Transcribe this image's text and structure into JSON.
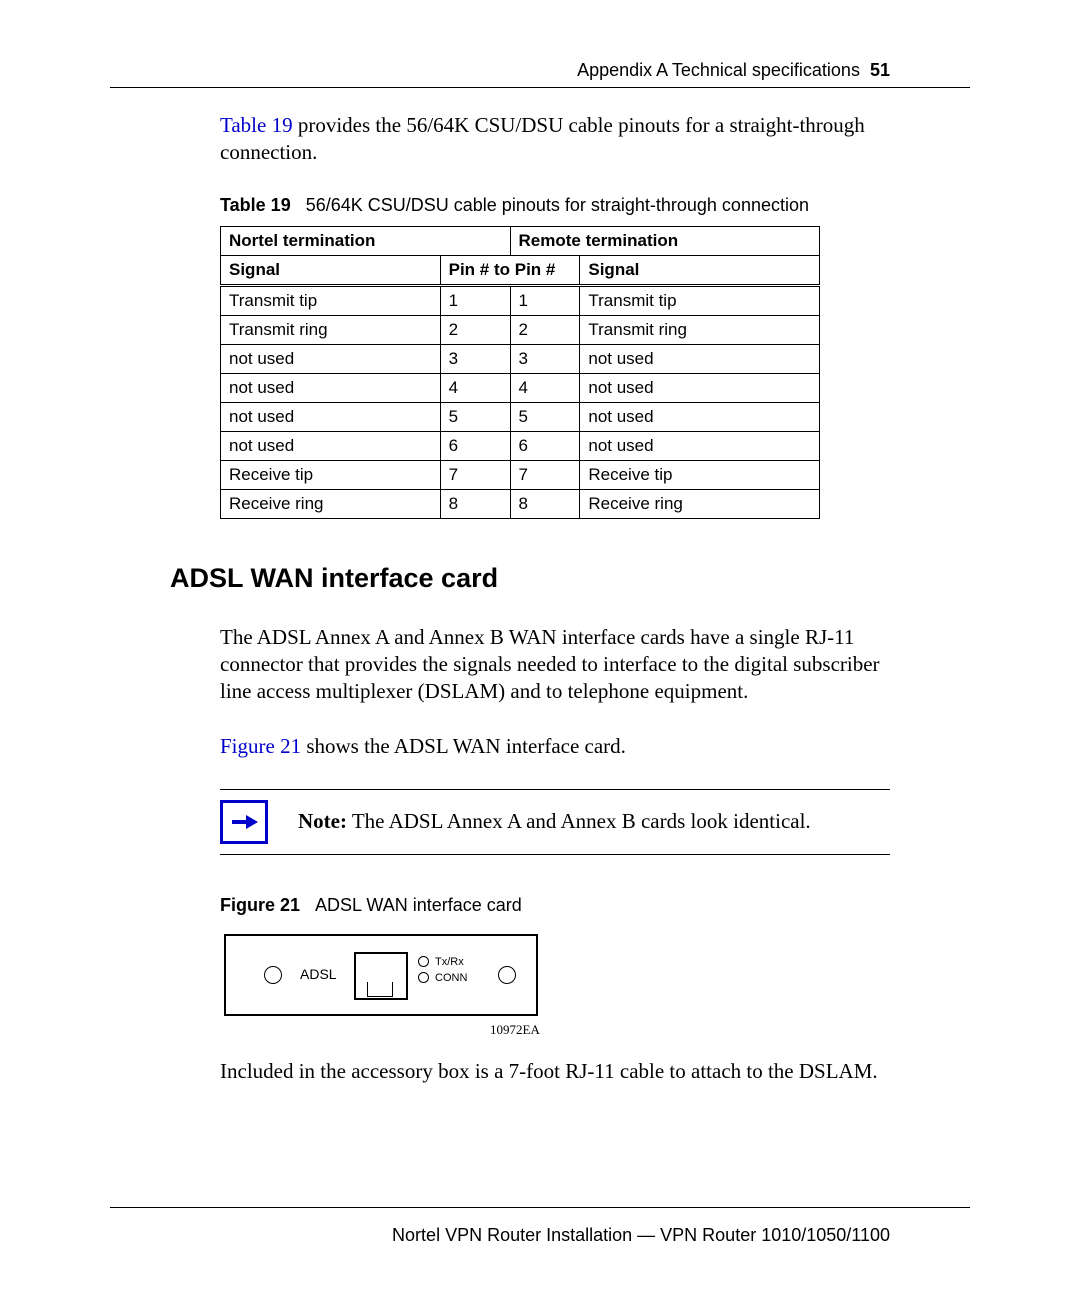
{
  "header": {
    "text": "Appendix A  Technical specifications",
    "page_number": "51"
  },
  "intro": {
    "table_ref": "Table 19",
    "rest": " provides the 56/64K CSU/DSU cable pinouts for a straight-through connection."
  },
  "table19": {
    "caption_label": "Table 19",
    "caption_text": "56/64K CSU/DSU cable pinouts for straight-through connection",
    "group_headers": [
      "Nortel termination",
      "Remote termination"
    ],
    "sub_headers": [
      "Signal",
      "Pin # to Pin #",
      "Signal"
    ],
    "rows": [
      [
        "Transmit tip",
        "1",
        "1",
        "Transmit tip"
      ],
      [
        "Transmit ring",
        "2",
        "2",
        "Transmit ring"
      ],
      [
        "not used",
        "3",
        "3",
        "not used"
      ],
      [
        "not used",
        "4",
        "4",
        "not used"
      ],
      [
        "not used",
        "5",
        "5",
        "not used"
      ],
      [
        "not used",
        "6",
        "6",
        "not used"
      ],
      [
        "Receive tip",
        "7",
        "7",
        "Receive tip"
      ],
      [
        "Receive ring",
        "8",
        "8",
        "Receive ring"
      ]
    ],
    "col_widths": [
      "220px",
      "70px",
      "70px",
      "240px"
    ]
  },
  "section_heading": "ADSL WAN interface card",
  "section_body": "The ADSL Annex A and Annex B WAN interface cards have a single RJ-11 connector that provides the signals needed to interface to the digital subscriber line access multiplexer (DSLAM) and to telephone equipment.",
  "figure_ref_sentence": {
    "ref": "Figure 21",
    "rest": " shows the ADSL WAN interface card."
  },
  "note": {
    "label": "Note:",
    "text": " The ADSL Annex A and Annex B cards look identical."
  },
  "figure21": {
    "caption_label": "Figure 21",
    "caption_text": "ADSL WAN interface card",
    "card_label": "ADSL",
    "led1": "Tx/Rx",
    "led2": "CONN",
    "code": "10972EA"
  },
  "accessory_text": "Included in the accessory box is a 7-foot RJ-11 cable to attach to the DSLAM.",
  "footer": "Nortel VPN Router Installation — VPN Router 1010/1050/1100",
  "colors": {
    "link": "#0000cc",
    "text": "#000000",
    "background": "#ffffff"
  }
}
